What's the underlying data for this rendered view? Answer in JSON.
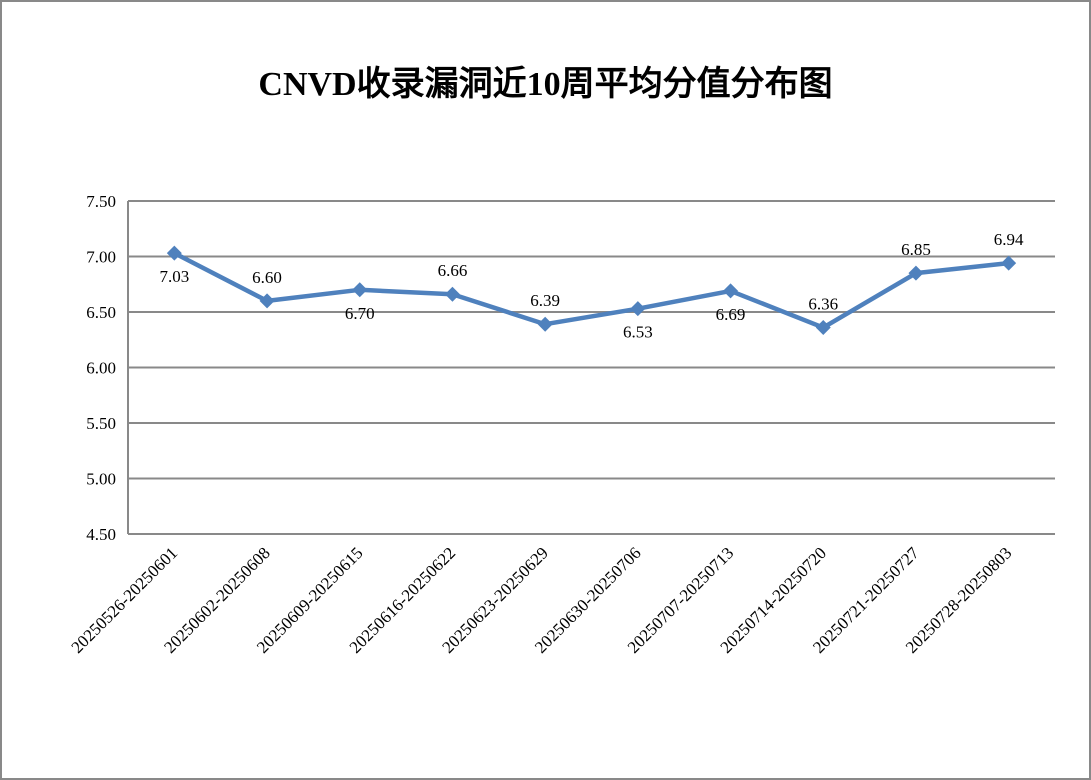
{
  "chart_data": {
    "type": "line",
    "title": "CNVD收录漏洞近10周平均分值分布图",
    "xlabel": "",
    "ylabel": "",
    "categories": [
      "20250526-20250601",
      "20250602-20250608",
      "20250609-20250615",
      "20250616-20250622",
      "20250623-20250629",
      "20250630-20250706",
      "20250707-20250713",
      "20250714-20250720",
      "20250721-20250727",
      "20250728-20250803"
    ],
    "series": [
      {
        "name": "平均分值",
        "values": [
          7.03,
          6.6,
          6.7,
          6.66,
          6.39,
          6.53,
          6.69,
          6.36,
          6.85,
          6.94
        ],
        "data_labels": [
          "7.03",
          "6.60",
          "6.70",
          "6.66",
          "6.39",
          "6.53",
          "6.69",
          "6.36",
          "6.85",
          "6.94"
        ],
        "label_positions": [
          "below",
          "above",
          "below",
          "above",
          "above",
          "below",
          "below",
          "above",
          "above",
          "above"
        ],
        "color": "#4F81BD",
        "marker": "diamond"
      }
    ],
    "ylim": [
      4.5,
      7.5
    ],
    "yticks": [
      "4.50",
      "5.00",
      "5.50",
      "6.00",
      "6.50",
      "7.00",
      "7.50"
    ],
    "grid": true,
    "legend": "none"
  },
  "colors": {
    "line": "#4F81BD",
    "grid": "#898989",
    "border": "#898989",
    "text": "#000000"
  }
}
